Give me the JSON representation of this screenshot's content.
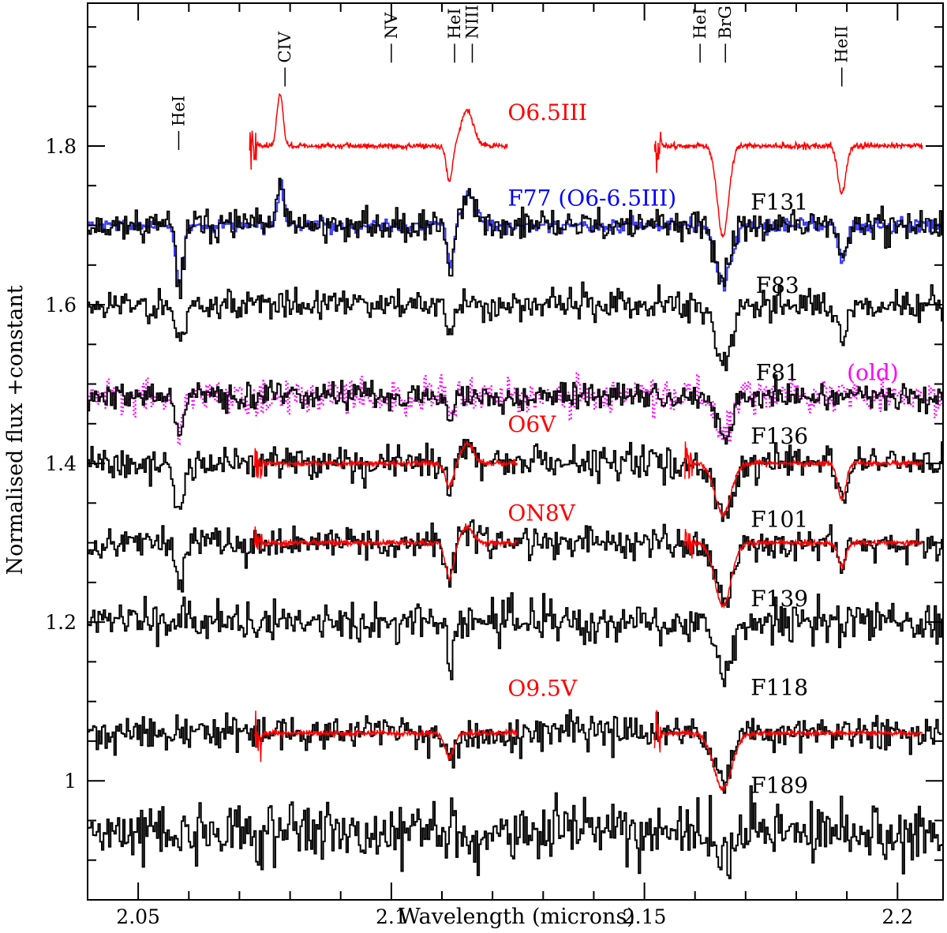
{
  "chart_data": {
    "type": "line",
    "title": "",
    "xlabel": "Wavelength (microns)",
    "ylabel": "Normalised flux +constant",
    "xlim": [
      2.04,
      2.209
    ],
    "ylim": [
      0.85,
      1.98
    ],
    "xticks": [
      {
        "value": 2.05,
        "label": "2.05"
      },
      {
        "value": 2.1,
        "label": "2.1"
      },
      {
        "value": 2.15,
        "label": "2.15"
      },
      {
        "value": 2.2,
        "label": "2.2"
      }
    ],
    "yticks": [
      {
        "value": 1.0,
        "label": "1"
      },
      {
        "value": 1.2,
        "label": "1.2"
      },
      {
        "value": 1.4,
        "label": "1.4"
      },
      {
        "value": 1.6,
        "label": "1.6"
      },
      {
        "value": 1.8,
        "label": "1.8"
      }
    ],
    "line_ids": [
      {
        "label": "HeI",
        "x": 2.058,
        "y": 1.795
      },
      {
        "label": "CIV",
        "x": 2.079,
        "y": 1.875
      },
      {
        "label": "NV",
        "x": 2.1,
        "y": 1.905
      },
      {
        "label": "HeI",
        "x": 2.1125,
        "y": 1.905
      },
      {
        "label": "NIII",
        "x": 2.116,
        "y": 1.905
      },
      {
        "label": "HeI",
        "x": 2.161,
        "y": 1.905
      },
      {
        "label": "BrG",
        "x": 2.166,
        "y": 1.905
      },
      {
        "label": "HeII",
        "x": 2.189,
        "y": 1.875
      }
    ],
    "labels": [
      {
        "text": "O6.5III",
        "x": 2.123,
        "y": 1.833,
        "color": "#ff0000"
      },
      {
        "text": "F77 (O6-6.5III)",
        "x": 2.123,
        "y": 1.725,
        "color": "#0000ff"
      },
      {
        "text": "F131",
        "x": 2.171,
        "y": 1.72,
        "color": "#000000"
      },
      {
        "text": "F83",
        "x": 2.172,
        "y": 1.615,
        "color": "#000000"
      },
      {
        "text": "F81",
        "x": 2.172,
        "y": 1.505,
        "color": "#000000"
      },
      {
        "text": "(old)",
        "x": 2.19,
        "y": 1.505,
        "color": "#ff00ff"
      },
      {
        "text": "O6V",
        "x": 2.123,
        "y": 1.44,
        "color": "#ff0000"
      },
      {
        "text": "F136",
        "x": 2.171,
        "y": 1.425,
        "color": "#000000"
      },
      {
        "text": "ON8V",
        "x": 2.123,
        "y": 1.328,
        "color": "#ff0000"
      },
      {
        "text": "F101",
        "x": 2.171,
        "y": 1.32,
        "color": "#000000"
      },
      {
        "text": "F139",
        "x": 2.171,
        "y": 1.22,
        "color": "#000000"
      },
      {
        "text": "O9.5V",
        "x": 2.123,
        "y": 1.107,
        "color": "#ff0000"
      },
      {
        "text": "F118",
        "x": 2.171,
        "y": 1.108,
        "color": "#000000"
      },
      {
        "text": "F189",
        "x": 2.171,
        "y": 0.985,
        "color": "#000000"
      }
    ],
    "series": [
      {
        "name": "O6.5III",
        "type": "template",
        "color": "#ff0000",
        "style": "solid",
        "xrange": [
          2.072,
          2.123,
          2.152,
          2.205
        ],
        "base": 1.8,
        "noise": 0.003,
        "features": [
          {
            "c": 2.078,
            "d": 0.065,
            "w": 0.0006
          },
          {
            "c": 2.1115,
            "d": -0.045,
            "w": 0.0006
          },
          {
            "c": 2.115,
            "d": 0.045,
            "w": 0.0012
          },
          {
            "c": 2.1655,
            "d": -0.115,
            "w": 0.0011
          },
          {
            "c": 2.189,
            "d": -0.06,
            "w": 0.0008
          }
        ]
      },
      {
        "name": "F77",
        "type": "spectrum",
        "color": "#3333ff",
        "style": "solid",
        "xrange": [
          2.04,
          2.209
        ],
        "base": 1.7,
        "noise": 0.008,
        "seed": 7,
        "features": [
          {
            "c": 2.058,
            "d": -0.075,
            "w": 0.0007
          },
          {
            "c": 2.078,
            "d": 0.06,
            "w": 0.0006
          },
          {
            "c": 2.1115,
            "d": -0.05,
            "w": 0.0006
          },
          {
            "c": 2.115,
            "d": 0.04,
            "w": 0.0012
          },
          {
            "c": 2.1655,
            "d": -0.075,
            "w": 0.0015
          },
          {
            "c": 2.189,
            "d": -0.045,
            "w": 0.0008
          }
        ]
      },
      {
        "name": "F131",
        "type": "spectrum",
        "color": "#000000",
        "style": "solid",
        "xrange": [
          2.04,
          2.209
        ],
        "base": 1.7,
        "noise": 0.016,
        "seed": 11,
        "features": [
          {
            "c": 2.058,
            "d": -0.08,
            "w": 0.0007
          },
          {
            "c": 2.078,
            "d": 0.055,
            "w": 0.0006
          },
          {
            "c": 2.1115,
            "d": -0.06,
            "w": 0.0006
          },
          {
            "c": 2.115,
            "d": 0.04,
            "w": 0.0012
          },
          {
            "c": 2.1655,
            "d": -0.07,
            "w": 0.0015
          },
          {
            "c": 2.189,
            "d": -0.045,
            "w": 0.0008
          }
        ]
      },
      {
        "name": "F83",
        "type": "spectrum",
        "color": "#000000",
        "style": "solid",
        "xrange": [
          2.04,
          2.209
        ],
        "base": 1.6,
        "noise": 0.016,
        "seed": 23,
        "features": [
          {
            "c": 2.058,
            "d": -0.05,
            "w": 0.0008
          },
          {
            "c": 2.1115,
            "d": -0.04,
            "w": 0.0006
          },
          {
            "c": 2.1655,
            "d": -0.08,
            "w": 0.0015
          },
          {
            "c": 2.189,
            "d": -0.04,
            "w": 0.0008
          }
        ]
      },
      {
        "name": "F81 (old)",
        "type": "spectrum",
        "color": "#ff00ff",
        "style": "dotted",
        "xrange": [
          2.04,
          2.209
        ],
        "base": 1.485,
        "noise": 0.018,
        "seed": 31,
        "features": [
          {
            "c": 2.058,
            "d": -0.05,
            "w": 0.0008
          },
          {
            "c": 2.1115,
            "d": -0.03,
            "w": 0.0006
          },
          {
            "c": 2.1655,
            "d": -0.05,
            "w": 0.0015
          }
        ]
      },
      {
        "name": "F81",
        "type": "spectrum",
        "color": "#000000",
        "style": "solid",
        "xrange": [
          2.04,
          2.209
        ],
        "base": 1.485,
        "noise": 0.014,
        "seed": 37,
        "features": [
          {
            "c": 2.058,
            "d": -0.05,
            "w": 0.0008
          },
          {
            "c": 2.1115,
            "d": -0.03,
            "w": 0.0006
          },
          {
            "c": 2.1655,
            "d": -0.05,
            "w": 0.0015
          }
        ]
      },
      {
        "name": "F136",
        "type": "spectrum",
        "color": "#000000",
        "style": "solid",
        "xrange": [
          2.04,
          2.209
        ],
        "base": 1.4,
        "noise": 0.017,
        "seed": 41,
        "features": [
          {
            "c": 2.058,
            "d": -0.07,
            "w": 0.0008
          },
          {
            "c": 2.1115,
            "d": -0.03,
            "w": 0.0007
          },
          {
            "c": 2.115,
            "d": 0.025,
            "w": 0.0012
          },
          {
            "c": 2.1655,
            "d": -0.07,
            "w": 0.0016
          },
          {
            "c": 2.189,
            "d": -0.045,
            "w": 0.0008
          }
        ]
      },
      {
        "name": "O6V",
        "type": "template",
        "color": "#ff0000",
        "style": "solid",
        "xrange": [
          2.073,
          2.125,
          2.158,
          2.205
        ],
        "base": 1.4,
        "noise": 0.003,
        "features": [
          {
            "c": 2.1115,
            "d": -0.03,
            "w": 0.0008
          },
          {
            "c": 2.115,
            "d": 0.025,
            "w": 0.0012
          },
          {
            "c": 2.1655,
            "d": -0.065,
            "w": 0.0016
          },
          {
            "c": 2.189,
            "d": -0.045,
            "w": 0.0008
          }
        ]
      },
      {
        "name": "F101",
        "type": "spectrum",
        "color": "#000000",
        "style": "solid",
        "xrange": [
          2.04,
          2.209
        ],
        "base": 1.3,
        "noise": 0.017,
        "seed": 53,
        "features": [
          {
            "c": 2.058,
            "d": -0.05,
            "w": 0.0008
          },
          {
            "c": 2.1115,
            "d": -0.045,
            "w": 0.0008
          },
          {
            "c": 2.115,
            "d": 0.02,
            "w": 0.0012
          },
          {
            "c": 2.1655,
            "d": -0.075,
            "w": 0.0016
          },
          {
            "c": 2.189,
            "d": -0.03,
            "w": 0.0008
          }
        ]
      },
      {
        "name": "ON8V",
        "type": "template",
        "color": "#ff0000",
        "style": "solid",
        "xrange": [
          2.073,
          2.125,
          2.158,
          2.205
        ],
        "base": 1.3,
        "noise": 0.003,
        "features": [
          {
            "c": 2.1115,
            "d": -0.045,
            "w": 0.0008
          },
          {
            "c": 2.115,
            "d": 0.02,
            "w": 0.0012
          },
          {
            "c": 2.1655,
            "d": -0.08,
            "w": 0.0016
          },
          {
            "c": 2.189,
            "d": -0.03,
            "w": 0.0008
          }
        ]
      },
      {
        "name": "F139",
        "type": "spectrum",
        "color": "#000000",
        "style": "solid",
        "xrange": [
          2.04,
          2.209
        ],
        "base": 1.2,
        "noise": 0.022,
        "seed": 61,
        "features": [
          {
            "c": 2.1115,
            "d": -0.06,
            "w": 0.0006
          },
          {
            "c": 2.1655,
            "d": -0.075,
            "w": 0.0015
          }
        ]
      },
      {
        "name": "F118",
        "type": "spectrum",
        "color": "#000000",
        "style": "solid",
        "xrange": [
          2.04,
          2.209
        ],
        "base": 1.06,
        "noise": 0.018,
        "seed": 71,
        "features": [
          {
            "c": 2.1115,
            "d": -0.03,
            "w": 0.0008
          },
          {
            "c": 2.1655,
            "d": -0.065,
            "w": 0.0016
          }
        ]
      },
      {
        "name": "O9.5V",
        "type": "template",
        "color": "#ff0000",
        "style": "solid",
        "xrange": [
          2.073,
          2.125,
          2.152,
          2.205
        ],
        "base": 1.06,
        "noise": 0.003,
        "features": [
          {
            "c": 2.1115,
            "d": -0.03,
            "w": 0.0009
          },
          {
            "c": 2.1655,
            "d": -0.07,
            "w": 0.0018
          }
        ]
      },
      {
        "name": "F189",
        "type": "spectrum",
        "color": "#000000",
        "style": "solid",
        "xrange": [
          2.04,
          2.209
        ],
        "base": 0.935,
        "noise": 0.032,
        "seed": 89,
        "features": [
          {
            "c": 2.1655,
            "d": -0.04,
            "w": 0.0015
          }
        ]
      }
    ]
  }
}
